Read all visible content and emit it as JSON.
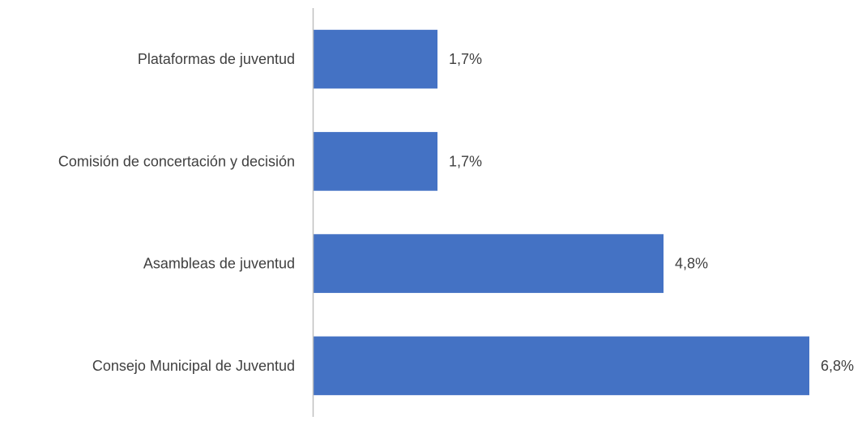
{
  "chart_data": {
    "type": "bar",
    "orientation": "horizontal",
    "title": "",
    "xlabel": "",
    "ylabel": "",
    "categories": [
      "Plataformas de juventud",
      "Comisión de concertación y decisión",
      "Asambleas de juventud",
      "Consejo Municipal de Juventud"
    ],
    "values": [
      1.7,
      1.7,
      4.8,
      6.8
    ],
    "data_labels": [
      "1,7%",
      "1,7%",
      "4,8%",
      "6,8%"
    ],
    "xlim": [
      0,
      6.8
    ],
    "grid": false,
    "legend": "none",
    "colors": {
      "bar": "#4472C4",
      "axis": "#BFBFBF",
      "text": "#404040"
    }
  }
}
